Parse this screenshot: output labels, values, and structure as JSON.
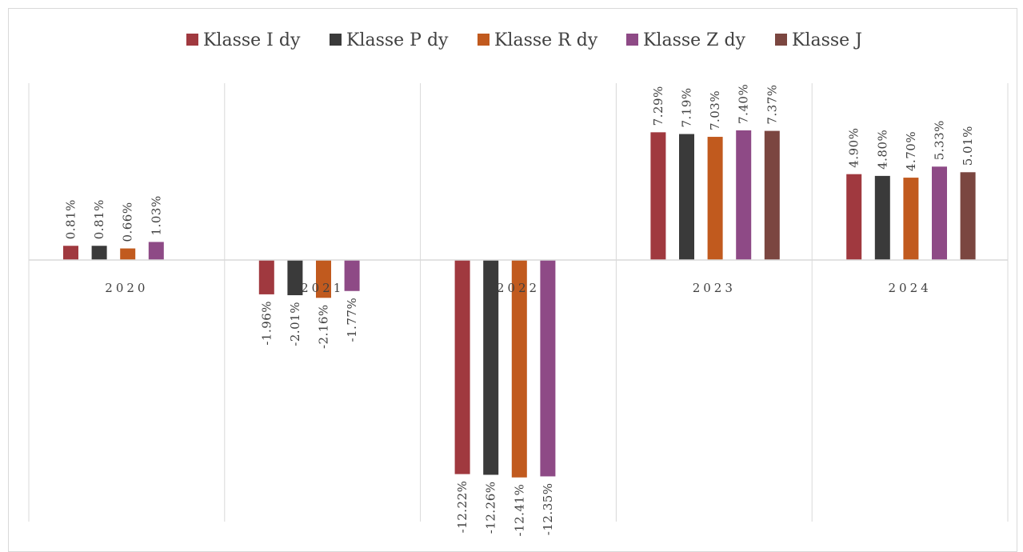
{
  "chart_data": {
    "type": "bar",
    "categories": [
      "2020",
      "2021",
      "2022",
      "2023",
      "2024"
    ],
    "series": [
      {
        "name": "Klasse I dy",
        "color": "#a0393f",
        "values": [
          0.81,
          -1.96,
          -12.22,
          7.29,
          4.9
        ],
        "labels": [
          "0.81%",
          "-1.96%",
          "-12.22%",
          "7.29%",
          "4.90%"
        ]
      },
      {
        "name": "Klasse P dy",
        "color": "#3a3a3a",
        "values": [
          0.81,
          -2.01,
          -12.26,
          7.19,
          4.8
        ],
        "labels": [
          "0.81%",
          "-2.01%",
          "-12.26%",
          "7.19%",
          "4.80%"
        ]
      },
      {
        "name": "Klasse R dy",
        "color": "#c15a1e",
        "values": [
          0.66,
          -2.16,
          -12.41,
          7.03,
          4.7
        ],
        "labels": [
          "0.66%",
          "-2.16%",
          "-12.41%",
          "7.03%",
          "4.70%"
        ]
      },
      {
        "name": "Klasse Z dy",
        "color": "#8e4a86",
        "values": [
          1.03,
          -1.77,
          -12.35,
          7.4,
          5.33
        ],
        "labels": [
          "1.03%",
          "-1.77%",
          "-12.35%",
          "7.40%",
          "5.33%"
        ]
      },
      {
        "name": "Klasse J",
        "color": "#7b4640",
        "values": [
          null,
          null,
          null,
          7.37,
          5.01
        ],
        "labels": [
          "",
          "",
          "",
          "7.37%",
          "5.01%"
        ]
      }
    ],
    "legend_position": "top",
    "grid": "vertical category separators"
  }
}
